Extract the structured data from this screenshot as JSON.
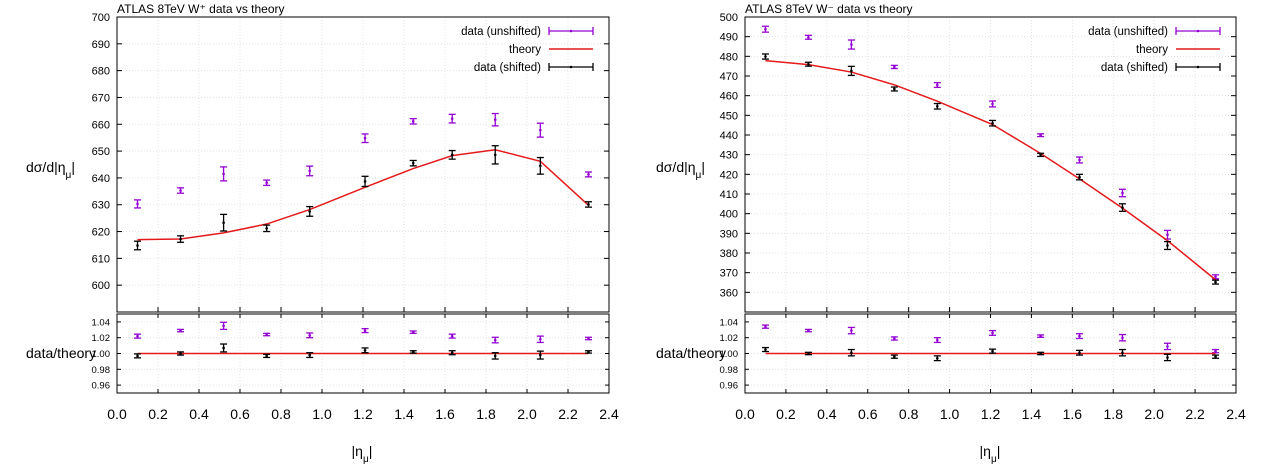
{
  "colors": {
    "unshifted": "#9400d3",
    "theory": "#e41a1c",
    "shifted": "#000000",
    "grid": "#dddddd",
    "frame": "#000000"
  },
  "chart_data": [
    {
      "type": "scatter",
      "title": "ATLAS 8TeV W⁺ data vs theory",
      "xlabel": "|ημ|",
      "ylabel": "dσ/d|ημ|",
      "ratio_ylabel": "data/theory",
      "xlim": [
        0.0,
        2.4
      ],
      "ylim": [
        590,
        700
      ],
      "ratio_ylim": [
        0.95,
        1.05
      ],
      "x_ticks": [
        "0.0",
        "0.2",
        "0.4",
        "0.6",
        "0.8",
        "1.0",
        "1.2",
        "1.4",
        "1.6",
        "1.8",
        "2.0",
        "2.2",
        "2.4"
      ],
      "y_ticks": [
        "600",
        "610",
        "620",
        "630",
        "640",
        "650",
        "660",
        "670",
        "680",
        "690",
        "700"
      ],
      "ratio_y_ticks": [
        "0.96",
        "0.98",
        "1.00",
        "1.02",
        "1.04"
      ],
      "legend_position": "top-right",
      "legend": [
        "data (unshifted)",
        "theory",
        "data (shifted)"
      ],
      "x": [
        0.1,
        0.31,
        0.52,
        0.73,
        0.94,
        1.21,
        1.445,
        1.635,
        1.845,
        2.065,
        2.3
      ],
      "series": [
        {
          "name": "data (unshifted)",
          "values": [
            630.3,
            635.3,
            641.5,
            638.2,
            642.6,
            654.8,
            661.1,
            662.1,
            661.7,
            657.8,
            641.3
          ],
          "errors": [
            1.5,
            1.0,
            2.6,
            1.0,
            1.8,
            1.6,
            1.0,
            1.6,
            2.3,
            2.6,
            0.9
          ]
        },
        {
          "name": "theory",
          "values": [
            617.0,
            617.2,
            619.5,
            622.8,
            628.2,
            636.5,
            643.5,
            648.3,
            650.5,
            646.2,
            629.8
          ]
        },
        {
          "name": "data (shifted)",
          "values": [
            614.8,
            617.2,
            623.3,
            621.2,
            627.5,
            638.7,
            645.5,
            648.6,
            648.6,
            644.5,
            630.1
          ],
          "errors": [
            1.6,
            1.2,
            3.1,
            1.2,
            1.8,
            1.9,
            1.0,
            1.6,
            3.4,
            3.1,
            1.0
          ]
        }
      ],
      "ratio_series": [
        {
          "name": "data (unshifted)",
          "values": [
            1.022,
            1.029,
            1.035,
            1.024,
            1.023,
            1.029,
            1.027,
            1.022,
            1.017,
            1.018,
            1.019
          ],
          "errors": [
            0.0025,
            0.0015,
            0.0045,
            0.0015,
            0.003,
            0.0025,
            0.0015,
            0.0025,
            0.0035,
            0.004,
            0.0015
          ]
        },
        {
          "name": "theory",
          "values": [
            1.0,
            1.0,
            1.0,
            1.0,
            1.0,
            1.0,
            1.0,
            1.0,
            1.0,
            1.0,
            1.0
          ]
        },
        {
          "name": "data (shifted)",
          "values": [
            0.997,
            1.0,
            1.007,
            0.997,
            0.998,
            1.004,
            1.002,
            1.001,
            0.997,
            0.998,
            1.002
          ],
          "errors": [
            0.0025,
            0.002,
            0.005,
            0.002,
            0.003,
            0.003,
            0.0015,
            0.0025,
            0.004,
            0.005,
            0.0015
          ]
        }
      ]
    },
    {
      "type": "scatter",
      "title": "ATLAS 8TeV W⁻ data vs theory",
      "xlabel": "|ημ|",
      "ylabel": "dσ/d|ημ|",
      "ratio_ylabel": "data/theory",
      "xlim": [
        0.0,
        2.4
      ],
      "ylim": [
        350,
        500
      ],
      "ratio_ylim": [
        0.95,
        1.05
      ],
      "x_ticks": [
        "0.0",
        "0.2",
        "0.4",
        "0.6",
        "0.8",
        "1.0",
        "1.2",
        "1.4",
        "1.6",
        "1.8",
        "2.0",
        "2.2",
        "2.4"
      ],
      "y_ticks": [
        "360",
        "370",
        "380",
        "390",
        "400",
        "410",
        "420",
        "430",
        "440",
        "450",
        "460",
        "470",
        "480",
        "490",
        "500"
      ],
      "ratio_y_ticks": [
        "0.96",
        "0.98",
        "1.00",
        "1.02",
        "1.04"
      ],
      "legend_position": "top-right",
      "legend": [
        "data (unshifted)",
        "theory",
        "data (shifted)"
      ],
      "x": [
        0.1,
        0.31,
        0.52,
        0.73,
        0.94,
        1.21,
        1.445,
        1.635,
        1.845,
        2.065,
        2.3
      ],
      "series": [
        {
          "name": "data (unshifted)",
          "values": [
            493.8,
            489.7,
            486.0,
            474.6,
            465.4,
            455.8,
            439.9,
            427.3,
            410.5,
            389.3,
            367.9
          ],
          "errors": [
            1.5,
            1.0,
            2.3,
            0.8,
            1.2,
            1.5,
            0.7,
            1.5,
            1.9,
            2.2,
            1.0
          ]
        },
        {
          "name": "theory",
          "values": [
            477.8,
            475.8,
            472.0,
            465.5,
            457.2,
            445.3,
            430.6,
            417.7,
            402.8,
            386.3,
            366.4
          ]
        },
        {
          "name": "data (shifted)",
          "values": [
            479.9,
            476.0,
            472.6,
            463.4,
            454.6,
            446.0,
            429.9,
            418.6,
            403.1,
            383.8,
            365.2
          ],
          "errors": [
            1.3,
            1.0,
            2.3,
            1.0,
            1.4,
            1.4,
            0.8,
            1.4,
            1.9,
            2.0,
            1.0
          ]
        }
      ],
      "ratio_series": [
        {
          "name": "data (unshifted)",
          "values": [
            1.034,
            1.029,
            1.029,
            1.019,
            1.017,
            1.026,
            1.022,
            1.022,
            1.02,
            1.009,
            1.003
          ],
          "errors": [
            0.002,
            0.0015,
            0.004,
            0.002,
            0.003,
            0.003,
            0.0015,
            0.003,
            0.004,
            0.004,
            0.002
          ]
        },
        {
          "name": "theory",
          "values": [
            1.0,
            1.0,
            1.0,
            1.0,
            1.0,
            1.0,
            1.0,
            1.0,
            1.0,
            1.0,
            1.0
          ]
        },
        {
          "name": "data (shifted)",
          "values": [
            1.005,
            1.0,
            1.001,
            0.996,
            0.994,
            1.003,
            1.0,
            1.001,
            1.001,
            0.995,
            0.996
          ],
          "errors": [
            0.0025,
            0.0015,
            0.004,
            0.002,
            0.003,
            0.0025,
            0.0015,
            0.003,
            0.004,
            0.004,
            0.002
          ]
        }
      ]
    }
  ]
}
